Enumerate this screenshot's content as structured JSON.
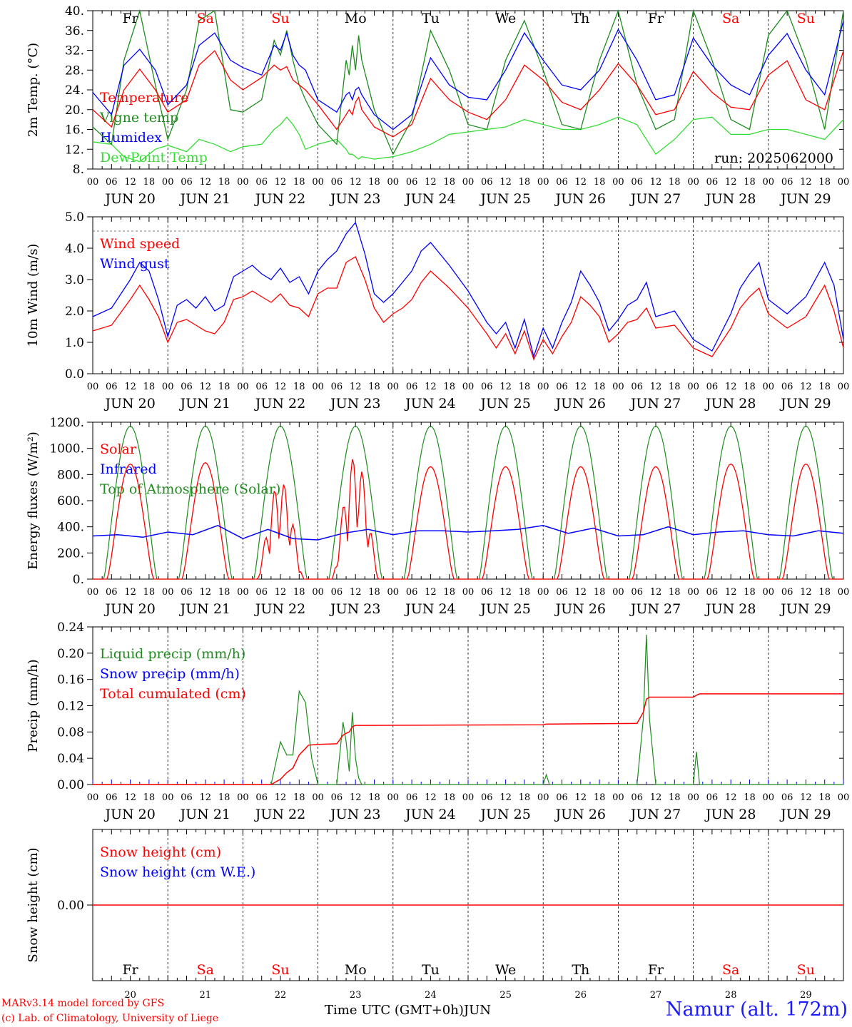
{
  "colors": {
    "red": "#ff0000",
    "darkgreen": "#1e8c1e",
    "lightgreen": "#33dd33",
    "blue": "#0000ff",
    "grey": "#555555"
  },
  "days": {
    "top": [
      "Fr",
      "Sa",
      "Su",
      "Mo",
      "Tu",
      "We",
      "Th",
      "Fr",
      "Sa",
      "Su"
    ],
    "top_colors": [
      "#000000",
      "#ff0000",
      "#ff0000",
      "#000000",
      "#000000",
      "#000000",
      "#000000",
      "#000000",
      "#ff0000",
      "#ff0000"
    ],
    "bottom_numbers": [
      "20",
      "21",
      "22",
      "23",
      "24",
      "25",
      "26",
      "27",
      "28",
      "29"
    ],
    "dates": [
      "JUN 20",
      "JUN 21",
      "JUN 22",
      "JUN 23",
      "JUN 24",
      "JUN 25",
      "JUN 26",
      "JUN 27",
      "JUN 28",
      "JUN 29"
    ],
    "hour_ticks": [
      "00",
      "06",
      "12",
      "18"
    ],
    "final_tick": "00"
  },
  "run_label": "run: 2025062000",
  "footer": {
    "model": "MARv3.14 model forced by GFS",
    "lab": "(c) Lab. of Climatology, University of Liege",
    "time_axis": "Time UTC (GMT+0h)",
    "month": "JUN",
    "station": "Namur (alt. 172m)"
  },
  "chart_data": [
    {
      "type": "line",
      "ylabel": "2m Temp. (°C)",
      "ylim": [
        8,
        40
      ],
      "yticks": [
        "8.",
        "12.",
        "16.",
        "20.",
        "24.",
        "28.",
        "32.",
        "36.",
        "40."
      ],
      "grid": "dashed day separators",
      "legend": "top-left",
      "x_hours": [
        0,
        6,
        10,
        15,
        20,
        24,
        30,
        34,
        39,
        44,
        48,
        54,
        58,
        60,
        62,
        64,
        66,
        68,
        72,
        78,
        81,
        82,
        83,
        84,
        85,
        86,
        90,
        96,
        102,
        108,
        114,
        120,
        126,
        132,
        138,
        144,
        150,
        156,
        162,
        168,
        174,
        180,
        186,
        192,
        198,
        204,
        210,
        216,
        222,
        228,
        234,
        240
      ],
      "series": [
        {
          "name": "Temperature",
          "color": "#ff0000",
          "values": [
            20,
            16.5,
            24,
            28.2,
            24,
            19.5,
            22,
            29,
            31.9,
            26,
            24,
            26.5,
            29,
            28,
            28.7,
            26,
            25,
            24,
            21,
            16,
            19,
            20,
            19,
            21.5,
            22.5,
            20,
            16.5,
            14.5,
            17,
            26.3,
            22,
            19.5,
            18,
            22,
            29,
            26,
            21.5,
            20,
            24,
            29.3,
            25,
            19,
            20,
            27.7,
            23.5,
            20.5,
            20,
            27,
            29.9,
            22,
            20,
            31.9
          ]
        },
        {
          "name": "Vigne temp",
          "color": "#1e8c1e",
          "values": [
            16.5,
            13,
            30,
            40,
            25,
            14,
            24,
            38,
            40,
            20,
            19.5,
            22,
            34,
            31,
            36,
            30,
            25,
            22,
            17,
            13,
            30,
            27,
            33,
            28,
            35,
            30,
            20,
            11,
            18,
            36,
            28,
            17,
            16,
            30,
            38,
            28,
            17,
            16,
            30,
            40,
            25,
            16,
            18,
            40,
            30,
            18,
            16,
            35,
            40,
            30,
            16,
            40
          ]
        },
        {
          "name": "Humidex",
          "color": "#0000ff",
          "values": [
            23.5,
            19,
            29,
            32.2,
            28,
            21,
            25,
            33,
            35.5,
            30,
            28.5,
            27,
            33,
            32,
            35.5,
            31,
            29,
            28,
            22,
            19.5,
            23,
            23.5,
            22,
            24,
            24.5,
            23,
            19,
            16,
            19,
            30.5,
            25,
            22.5,
            22,
            28,
            35.5,
            30,
            25,
            24,
            28,
            36.2,
            30,
            22,
            23,
            34.5,
            29,
            25,
            23,
            31,
            35.4,
            28,
            23,
            38
          ]
        },
        {
          "name": "DewPoint Temp",
          "color": "#33dd33",
          "values": [
            13.5,
            13,
            10.5,
            9.5,
            12,
            12.8,
            11.5,
            14,
            13,
            11.5,
            12.5,
            13,
            16,
            17,
            18.5,
            17,
            15,
            12,
            13,
            14,
            12,
            11,
            11,
            10.5,
            10,
            10.5,
            10,
            10.5,
            11.5,
            13,
            15,
            15.5,
            16,
            16.5,
            18,
            17,
            16,
            16,
            17,
            18.5,
            17,
            11,
            14,
            18,
            18.5,
            15,
            15,
            16,
            16,
            15,
            14,
            18
          ]
        }
      ]
    },
    {
      "type": "line",
      "ylabel": "10m Wind (m/s)",
      "ylim": [
        0,
        5.5
      ],
      "yticks": [
        "0.0",
        "1.0",
        "2.0",
        "3.0",
        "4.0",
        "5.0"
      ],
      "grid": "dashed day separators, dashed line at 5.0",
      "legend": "top-left",
      "x_hours": [
        0,
        6,
        12,
        15,
        18,
        21,
        24,
        27,
        30,
        33,
        36,
        39,
        42,
        45,
        48,
        51,
        54,
        57,
        60,
        63,
        66,
        69,
        72,
        75,
        78,
        81,
        84,
        87,
        90,
        93,
        96,
        99,
        102,
        105,
        108,
        114,
        120,
        126,
        129,
        132,
        135,
        138,
        141,
        144,
        147,
        150,
        153,
        156,
        159,
        162,
        165,
        168,
        171,
        174,
        177,
        180,
        186,
        192,
        198,
        204,
        207,
        210,
        213,
        216,
        222,
        228,
        234,
        237,
        240
      ],
      "series": [
        {
          "name": "Wind speed",
          "color": "#ff0000",
          "values": [
            1.5,
            1.7,
            2.6,
            3.1,
            2.6,
            2.0,
            1.1,
            1.8,
            1.9,
            1.7,
            1.5,
            1.4,
            1.8,
            2.6,
            2.7,
            2.9,
            2.7,
            2.5,
            2.8,
            2.4,
            2.3,
            2.0,
            2.8,
            3.0,
            3.0,
            3.9,
            4.1,
            3.3,
            2.3,
            1.8,
            2.1,
            2.3,
            2.6,
            3.2,
            3.6,
            3.0,
            2.3,
            1.4,
            0.9,
            1.4,
            0.7,
            1.5,
            0.5,
            1.2,
            0.7,
            1.3,
            1.8,
            2.7,
            2.4,
            2.0,
            1.1,
            1.4,
            1.8,
            1.9,
            2.3,
            1.6,
            1.7,
            0.9,
            0.6,
            1.6,
            2.3,
            2.7,
            3.0,
            2.1,
            1.6,
            2.0,
            3.1,
            2.2,
            0.9
          ]
        },
        {
          "name": "Wind gust",
          "color": "#0000ff",
          "values": [
            2.0,
            2.3,
            3.3,
            3.9,
            3.6,
            2.6,
            1.3,
            2.4,
            2.6,
            2.3,
            2.7,
            2.2,
            2.4,
            3.4,
            3.6,
            3.8,
            3.5,
            3.3,
            3.7,
            3.2,
            3.4,
            2.8,
            3.6,
            4.0,
            4.3,
            4.9,
            5.3,
            4.2,
            2.8,
            2.5,
            2.8,
            3.2,
            3.6,
            4.3,
            4.6,
            3.8,
            2.9,
            1.8,
            1.4,
            1.8,
            0.9,
            1.9,
            0.6,
            1.6,
            0.9,
            1.8,
            2.5,
            3.6,
            3.1,
            2.5,
            1.5,
            1.9,
            2.4,
            2.6,
            3.2,
            2.0,
            2.2,
            1.2,
            0.8,
            2.1,
            3.0,
            3.5,
            3.9,
            2.6,
            2.1,
            2.7,
            3.9,
            3.1,
            1.2
          ]
        }
      ]
    },
    {
      "type": "line",
      "ylabel": "Energy fluxes (W/m²)",
      "ylim": [
        0,
        1200
      ],
      "yticks": [
        "0.",
        "200.",
        "400.",
        "600.",
        "800.",
        "1000.",
        "1200."
      ],
      "grid": "dashed day separators",
      "legend": "top-left",
      "peaks": {
        "toa": [
          1170,
          1170,
          1170,
          1170,
          1170,
          1170,
          1170,
          1170,
          1170,
          1170
        ],
        "solar": [
          880,
          890,
          720,
          900,
          860,
          860,
          860,
          860,
          880,
          880
        ]
      },
      "series": [
        {
          "name": "Solar",
          "color": "#ff0000",
          "values": "daily bell curves, peaks listed above; noisy on JUN 22 and JUN 23"
        },
        {
          "name": "Infrared",
          "color": "#0000ff",
          "values": [
            330,
            340,
            320,
            360,
            340,
            410,
            310,
            380,
            310,
            300,
            350,
            380,
            340,
            370,
            370,
            360,
            370,
            380,
            410,
            350,
            390,
            330,
            340,
            400,
            340,
            360,
            370,
            340,
            330,
            370,
            350
          ]
        },
        {
          "name": "Top of Atmosphere (Solar)",
          "color": "#1e8c1e",
          "values": "daily bell curves peaking at 1170"
        }
      ]
    },
    {
      "type": "line",
      "ylabel": "Precip (mm/h)",
      "ylim": [
        0,
        0.24
      ],
      "yticks": [
        "0.00",
        "0.04",
        "0.08",
        "0.12",
        "0.16",
        "0.20",
        "0.24"
      ],
      "grid": "dashed day separators",
      "legend": "top-left",
      "series": [
        {
          "name": "Liquid precip (mm/h)",
          "color": "#1e8c1e",
          "x_hours": [
            0,
            57,
            60,
            62,
            64,
            66,
            68,
            70,
            72,
            78,
            80,
            81,
            82,
            83,
            84,
            85,
            86,
            144,
            145,
            146,
            174,
            176,
            177,
            178,
            180,
            192,
            193,
            194,
            240
          ],
          "values": [
            0,
            0,
            0.065,
            0.045,
            0.045,
            0.142,
            0.125,
            0.04,
            0,
            0,
            0.095,
            0.065,
            0.02,
            0.11,
            0.04,
            0.01,
            0,
            0,
            0.015,
            0,
            0,
            0.1,
            0.228,
            0.1,
            0,
            0,
            0.05,
            0,
            0
          ]
        },
        {
          "name": "Snow precip (mm/h)",
          "color": "#0000ff",
          "values": [
            0
          ]
        },
        {
          "name": "Total cumulated (cm)",
          "color": "#ff0000",
          "x_hours": [
            0,
            57,
            60,
            62,
            64,
            66,
            69,
            72,
            78,
            80,
            81,
            82,
            83,
            84,
            144,
            145,
            146,
            174,
            176,
            177,
            178,
            192,
            193,
            194,
            240
          ],
          "values": [
            0,
            0,
            0.008,
            0.018,
            0.025,
            0.045,
            0.06,
            0.061,
            0.062,
            0.075,
            0.078,
            0.08,
            0.088,
            0.09,
            0.091,
            0.092,
            0.092,
            0.093,
            0.11,
            0.13,
            0.133,
            0.133,
            0.136,
            0.138,
            0.138
          ]
        }
      ]
    },
    {
      "type": "line",
      "ylabel": "Snow height (cm)",
      "ylim": [
        -1,
        1
      ],
      "yticks": [
        "0.00"
      ],
      "grid": "dashed day separators",
      "legend": "top-left",
      "series": [
        {
          "name": "Snow height (cm)",
          "color": "#ff0000",
          "values": [
            0.0
          ]
        },
        {
          "name": "Snow height (cm W.E.)",
          "color": "#0000ff",
          "values": [
            0.0
          ]
        }
      ]
    }
  ]
}
